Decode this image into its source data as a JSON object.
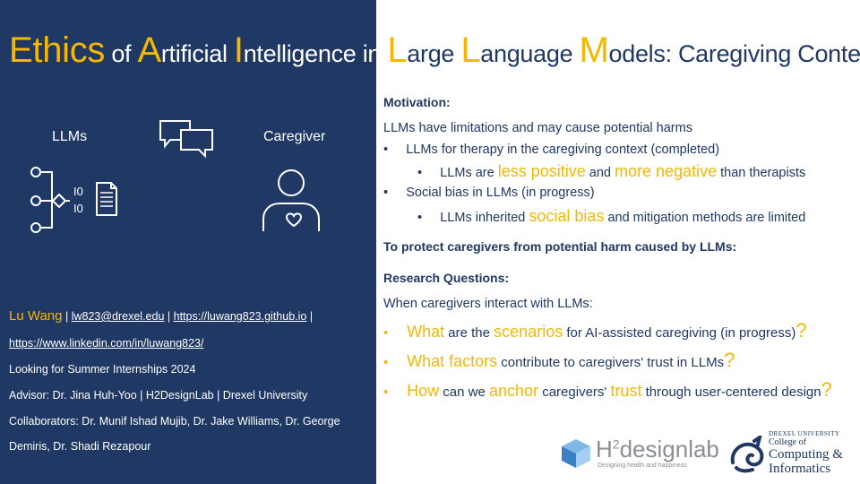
{
  "title": {
    "e": "E",
    "thics": "thics",
    "of": " of ",
    "a": "A",
    "rtificial": "rtificial ",
    "i": "I",
    "ntelligence": "ntelligence in ",
    "l": "L",
    "arge": "arge ",
    "l2": "L",
    "anguage": "anguage ",
    "m": "M",
    "odels": "odels: Caregiving Context"
  },
  "left": {
    "llms_label": "LLMs",
    "caregiver_label": "Caregiver",
    "name": "Lu Wang",
    "sep1": " | ",
    "email": "lw823@drexel.edu",
    "sep2": " | ",
    "website": "https://luwang823.github.io",
    "sep3": " |",
    "linkedin": "https://www.linkedin.com/in/luwang823/",
    "internship": "Looking for Summer Internships 2024",
    "advisor": "Advisor: Dr. Jina Huh-Yoo | H2DesignLab | Drexel University",
    "collab1": "Collaborators: Dr. Munif Ishad Mujib, Dr. Jake Williams, Dr. George",
    "collab2": "Demiris, Dr. Shadi Rezapour"
  },
  "right": {
    "motivation": "Motivation:",
    "limitations": "LLMs have limitations  and may cause potential harms",
    "b1": "LLMs for therapy in the caregiving context (completed)",
    "b1a_pre": "LLMs are ",
    "b1a_hl1": "less positive",
    "b1a_mid": " and ",
    "b1a_hl2": "more negative",
    "b1a_post": " than therapists",
    "b2": "Social bias in LLMs (in progress)",
    "b2a_pre": "LLMs inherited ",
    "b2a_hl": "social bias",
    "b2a_post": " and mitigation  methods are limited",
    "protect": "To protect caregivers from potential harm caused by LLMs:",
    "rq_head": "Research Questions:",
    "when": "When caregivers interact with LLMs:",
    "q1_a": "What",
    "q1_b": " are the ",
    "q1_c": "scenarios",
    "q1_d": " for AI-assisted caregiving (in progress)",
    "q1_e": "?",
    "q2_a": "What factors",
    "q2_b": " contribute to caregivers' trust in LLMs",
    "q2_e": "?",
    "q3_a": "How",
    "q3_b": " can we ",
    "q3_c": "anchor",
    "q3_d": " caregivers' ",
    "q3_e": "trust",
    "q3_f": " through user-centered design",
    "q3_g": "?"
  },
  "logos": {
    "h2": "H",
    "h2sup": "2",
    "h2rest": "designlab",
    "h2tag": "Designing health and happiness",
    "drexel_univ": "DREXEL UNIVERSITY",
    "college_of": "College of",
    "computing": "Computing &",
    "informatics": "Informatics"
  },
  "colors": {
    "navy": "#1f3864",
    "gold": "#f5b800"
  }
}
